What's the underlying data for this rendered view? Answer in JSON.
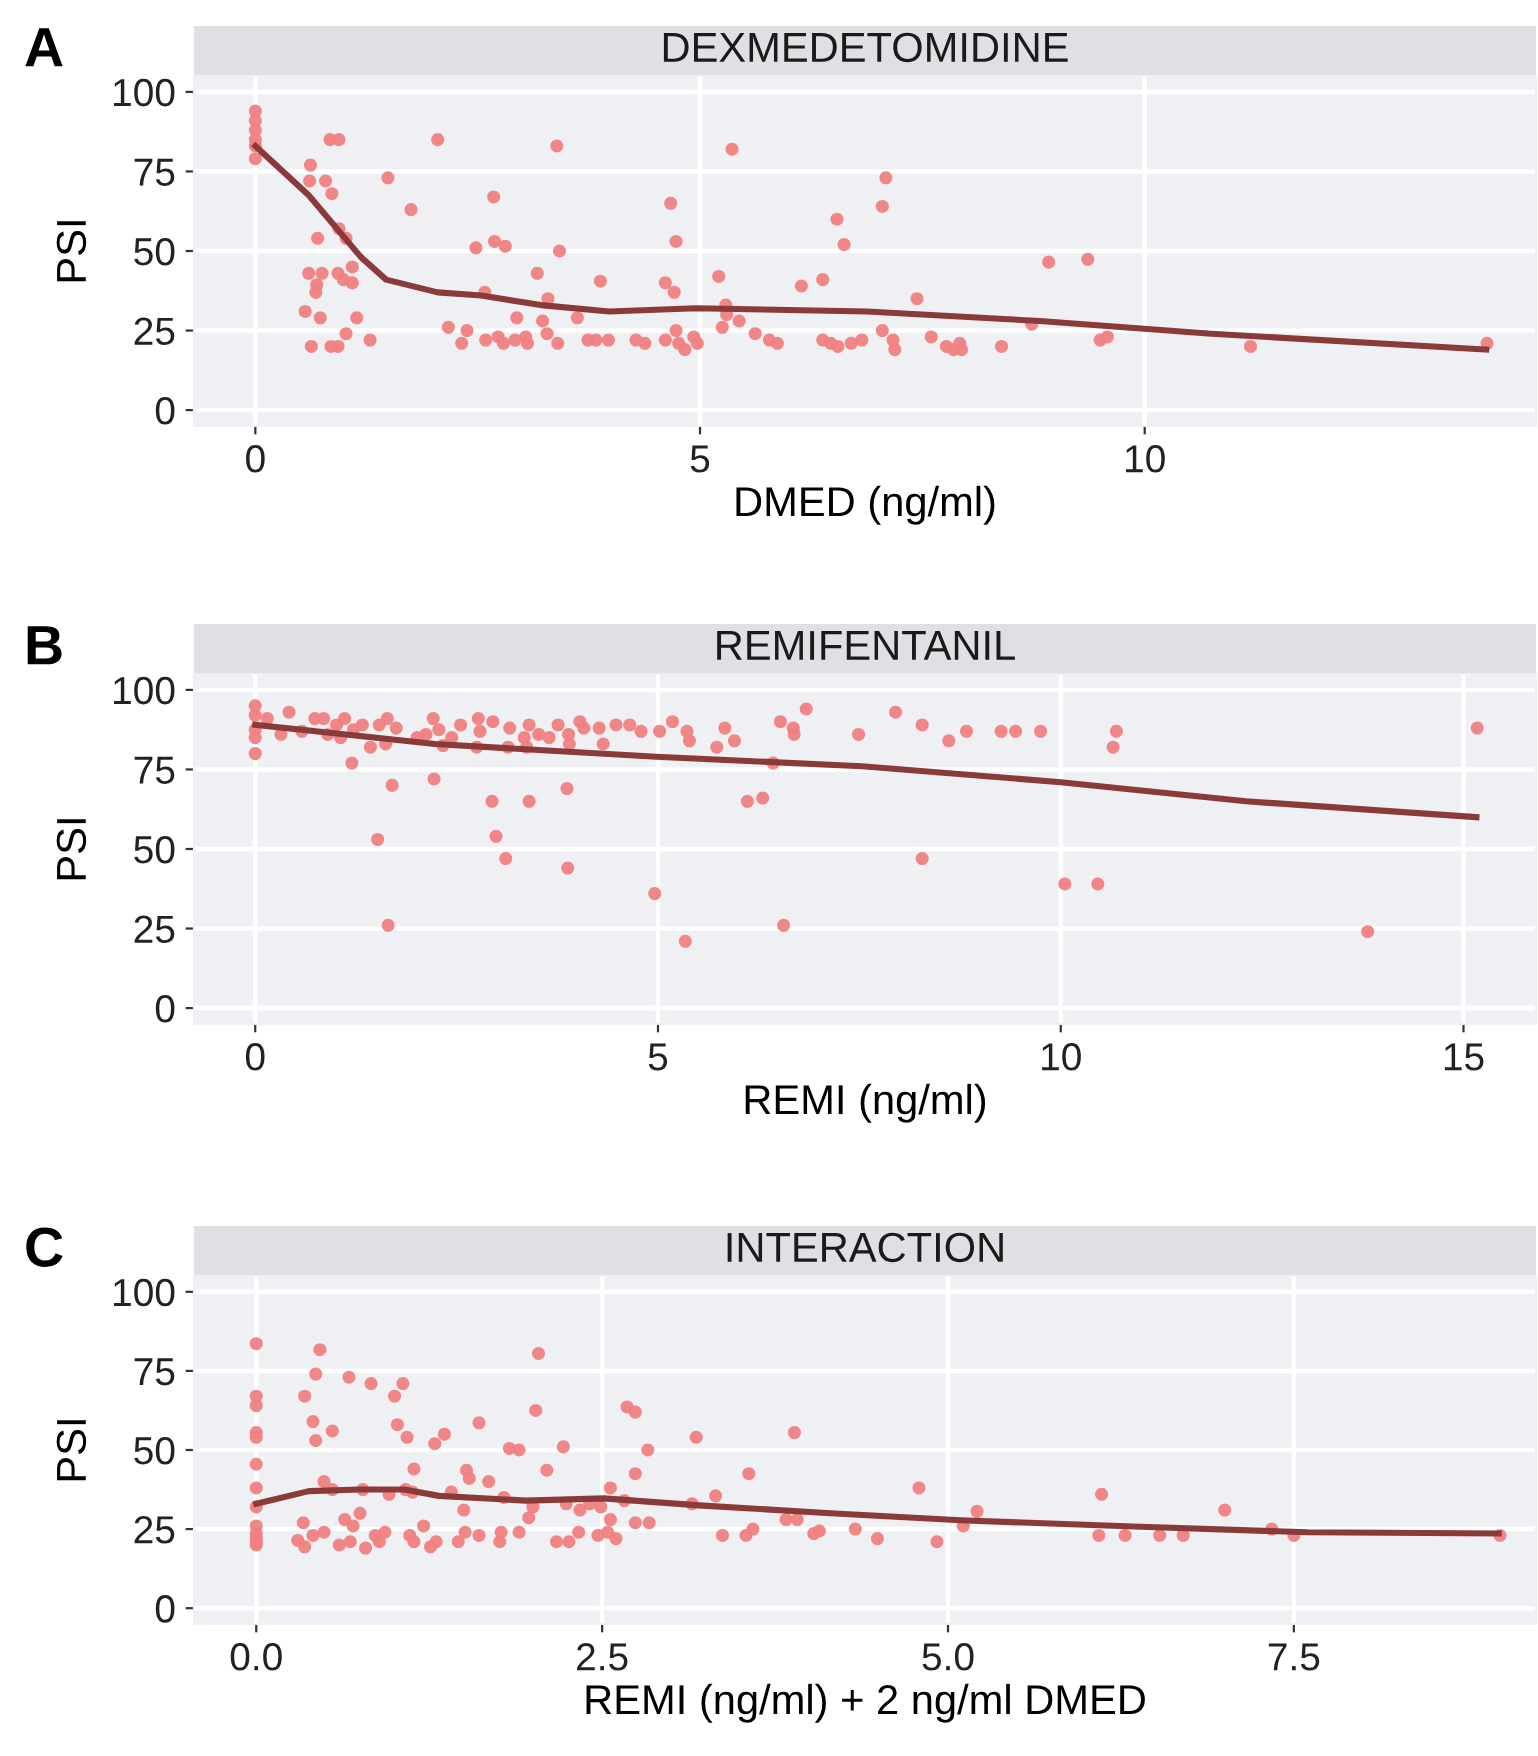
{
  "chart_data": [
    {
      "type": "scatter",
      "title": "DEXMEDETOMIDINE",
      "xlabel": "DMED (ng/ml)",
      "ylabel": "PSI",
      "annotations": [
        "A"
      ],
      "grid": true,
      "xlim": [
        -0.69,
        14.4
      ],
      "ylim": [
        -5,
        105
      ],
      "xticks": [
        0,
        5,
        10
      ],
      "yticks": [
        0,
        25,
        50,
        75,
        100
      ],
      "series": [
        {
          "marker": "circle",
          "color": "#f08080",
          "x": [
            0,
            0,
            0,
            0,
            0,
            0,
            0.62,
            0.84,
            0.94,
            0.61,
            0.79,
            0.86,
            1.49,
            1.75,
            2.05,
            3.39,
            5.36,
            0.7,
            1.02,
            0.94,
            2.68,
            4.67,
            4.73,
            2.69,
            2.81,
            2.48,
            3.42,
            7.09,
            7.05,
            6.54,
            6.62,
            8.92,
            9.36,
            3.17,
            3.88,
            4.61,
            4.71,
            5.21,
            6.14,
            6.38,
            0.6,
            0.75,
            0.93,
            1.09,
            0.99,
            1.09,
            0.69,
            0.68,
            2.58,
            3.29,
            7.44,
            0.56,
            0.73,
            1.14,
            2.94,
            3.62,
            5.29,
            5.3,
            5.44,
            2.17,
            2.38,
            3.23,
            3.28,
            1.02,
            1.29,
            0.63,
            0.85,
            0.93,
            2.32,
            2.59,
            2.73,
            2.79,
            2.92,
            3.04,
            3.06,
            3.4,
            3.74,
            3.83,
            3.97,
            4.28,
            4.38,
            4.61,
            4.73,
            4.76,
            4.83,
            4.93,
            4.97,
            5.25,
            5.62,
            5.78,
            5.87,
            6.38,
            6.47,
            6.55,
            6.7,
            6.82,
            7.05,
            7.17,
            7.19,
            7.6,
            7.77,
            7.85,
            7.92,
            7.94,
            8.39,
            8.73,
            9.5,
            9.58,
            11.19,
            13.85
          ],
          "values": [
            94,
            91,
            88,
            85,
            83,
            79,
            77,
            85,
            85,
            72,
            72,
            68,
            73,
            63,
            85,
            83,
            82,
            54,
            54,
            57,
            67,
            65,
            53,
            53,
            51.5,
            51,
            50,
            73,
            64,
            60,
            52,
            46.5,
            47.4,
            43,
            40.5,
            40,
            37,
            42,
            39,
            41,
            43,
            43,
            43,
            45,
            41,
            40,
            39.4,
            37,
            37,
            35,
            35,
            31,
            29,
            29,
            29,
            29,
            33,
            30,
            28,
            26,
            25,
            28,
            24,
            24,
            22,
            20,
            20,
            20,
            21,
            22,
            23,
            21,
            22,
            23,
            21,
            21,
            22,
            22,
            22,
            22,
            21,
            22,
            25,
            21,
            19,
            23,
            21,
            26,
            24,
            22,
            21,
            22,
            21,
            20,
            21,
            22,
            25,
            22,
            19,
            23,
            20,
            19,
            21,
            19,
            20,
            27,
            22,
            23,
            20,
            21
          ]
        },
        {
          "type": "line",
          "color": "#8b3a3a",
          "x": [
            0,
            0.6,
            1.19,
            1.47,
            2.05,
            2.54,
            3.21,
            3.98,
            4.95,
            6.88,
            8.82,
            10.75,
            13.84
          ],
          "values": [
            83,
            67.5,
            48,
            41,
            37,
            36,
            33,
            31,
            32,
            31,
            28,
            24,
            19
          ]
        }
      ]
    },
    {
      "type": "scatter",
      "title": "REMIFENTANIL",
      "xlabel": "REMI (ng/ml)",
      "ylabel": "PSI",
      "annotations": [
        "B"
      ],
      "grid": true,
      "xlim": [
        -0.76,
        15.9
      ],
      "ylim": [
        -5,
        105
      ],
      "xticks": [
        0,
        5,
        10,
        15
      ],
      "yticks": [
        0,
        25,
        50,
        75,
        100
      ],
      "series": [
        {
          "marker": "circle",
          "color": "#f08080",
          "x": [
            0,
            0,
            0,
            0,
            0,
            0.42,
            0.15,
            0.32,
            0.58,
            0.74,
            0.85,
            0.9,
            1.01,
            1.06,
            1.11,
            1.22,
            1.33,
            1.43,
            1.54,
            1.64,
            1.62,
            1.75,
            1.2,
            1.7,
            1.52,
            1.65,
            2.01,
            2.21,
            2.12,
            2.28,
            2.33,
            2.44,
            2.55,
            2.75,
            2.77,
            2.79,
            2.95,
            3.16,
            3.14,
            3.34,
            3.37,
            3.4,
            3.52,
            3.65,
            3.76,
            3.89,
            3.9,
            4.03,
            4.08,
            4.27,
            4.32,
            4.48,
            4.65,
            4.79,
            5.02,
            5.18,
            5.36,
            5.39,
            5.73,
            5.83,
            5.95,
            6.43,
            6.52,
            6.68,
            6.69,
            6.84,
            7.49,
            7.95,
            8.28,
            8.61,
            8.83,
            9.26,
            9.44,
            9.75,
            10.65,
            10.69,
            15.17,
            2.22,
            2.94,
            3.4,
            3.87,
            2.99,
            3.11,
            3.88,
            6.11,
            6.3,
            4.96,
            5.34,
            6.56,
            8.28,
            10.05,
            10.46,
            13.81
          ],
          "values": [
            95,
            92,
            87.5,
            85,
            80,
            93,
            91,
            86,
            87,
            91,
            91,
            86,
            89,
            85,
            91,
            87.5,
            89,
            82,
            89,
            91,
            83,
            88,
            77,
            70,
            53,
            26,
            85,
            91,
            86,
            87.5,
            82.5,
            85,
            89,
            82,
            91,
            87,
            90,
            88,
            82,
            85,
            82,
            89,
            86,
            85,
            89,
            86,
            83,
            90,
            88,
            88,
            83,
            89,
            89,
            87,
            87,
            90,
            87,
            84,
            82,
            88,
            84,
            77,
            90,
            88,
            86,
            94,
            86,
            93,
            89,
            84,
            87,
            87,
            87,
            87,
            82,
            87,
            88,
            72,
            65,
            65,
            69,
            54,
            47,
            44,
            65,
            66,
            36,
            21,
            26,
            47,
            39,
            39,
            24
          ]
        },
        {
          "type": "line",
          "color": "#8b3a3a",
          "x": [
            0,
            2.23,
            4.98,
            7.53,
            10,
            12.3,
            15.16
          ],
          "values": [
            89,
            83,
            79,
            76,
            71,
            65,
            60
          ]
        }
      ]
    },
    {
      "type": "scatter",
      "title": "INTERACTION",
      "xlabel": "REMI (ng/ml) + 2 ng/ml DMED",
      "ylabel": "PSI",
      "annotations": [
        "C"
      ],
      "grid": true,
      "xlim": [
        -0.45,
        9.25
      ],
      "ylim": [
        -5,
        105
      ],
      "xticks": [
        {
          "value": 0,
          "label": "0.0"
        },
        {
          "value": 2.5,
          "label": "2.5"
        },
        {
          "value": 5,
          "label": "5.0"
        },
        {
          "value": 7.5,
          "label": "7.5"
        }
      ],
      "yticks": [
        0,
        25,
        50,
        75,
        100
      ],
      "series": [
        {
          "marker": "circle",
          "color": "#f08080",
          "x": [
            0,
            0,
            0,
            0,
            0,
            0,
            0,
            0,
            0,
            0,
            0,
            0,
            0,
            0.46,
            0.43,
            0.35,
            0.41,
            0.43,
            0.55,
            0.67,
            0.83,
            1.06,
            1.0,
            1.02,
            1.09,
            2.04,
            2.02,
            2.68,
            2.74,
            2.22,
            1.83,
            1.9,
            1.29,
            1.36,
            1.61,
            2.83,
            3.18,
            3.89,
            1.14,
            1.52,
            1.54,
            1.68,
            2.1,
            2.74,
            3.56,
            4.79,
            6.11,
            0.49,
            0.55,
            0.77,
            0.96,
            1.08,
            1.13,
            1.41,
            1.5,
            1.79,
            2.0,
            1.97,
            2.24,
            2.34,
            2.41,
            2.49,
            2.56,
            2.56,
            2.66,
            2.74,
            2.84,
            3.15,
            3.32,
            3.83,
            3.91,
            4.07,
            4.33,
            4.49,
            4.92,
            5.11,
            5.21,
            6.09,
            6.28,
            6.53,
            6.7,
            7.0,
            7.34,
            7.5,
            8.99,
            0.34,
            0.3,
            0.35,
            0.41,
            0.49,
            0.6,
            0.64,
            0.68,
            0.7,
            0.75,
            0.79,
            0.86,
            0.89,
            0.93,
            1.11,
            1.14,
            1.21,
            1.26,
            1.3,
            1.46,
            1.51,
            1.61,
            1.76,
            1.77,
            1.9,
            2.17,
            2.26,
            2.33,
            2.47,
            2.54,
            2.6,
            3.37,
            3.54,
            3.59,
            4.03
          ],
          "values": [
            83.6,
            67,
            64,
            55.5,
            54,
            45.5,
            38,
            32,
            26,
            23.6,
            22,
            20,
            21,
            81.7,
            74,
            67,
            59,
            53,
            56,
            73,
            71,
            71,
            67,
            58,
            54,
            80.5,
            62.5,
            63.6,
            62,
            51,
            50.5,
            50,
            52,
            55,
            58.6,
            50,
            54,
            55.5,
            44,
            43.6,
            41,
            40,
            43.6,
            42.5,
            42.5,
            38,
            36,
            40,
            37.5,
            37.5,
            36,
            37.5,
            36.7,
            36.7,
            31,
            35,
            32,
            28.6,
            33,
            31,
            33,
            32,
            38,
            28,
            34,
            27,
            27,
            33,
            35.5,
            28,
            28,
            24.4,
            25,
            22,
            21,
            26,
            30.6,
            23,
            23,
            23,
            23,
            31,
            25,
            23,
            23,
            27,
            21.4,
            19.4,
            23,
            24,
            20,
            28,
            21,
            26,
            30,
            19,
            23,
            21,
            24,
            23,
            21,
            26,
            19.4,
            21,
            21,
            24,
            23,
            21,
            24,
            24,
            21,
            21,
            24,
            23,
            24,
            22,
            23,
            23,
            25,
            23.6
          ]
        },
        {
          "type": "line",
          "color": "#8b3a3a",
          "x": [
            0,
            0.38,
            0.75,
            1.07,
            1.32,
            1.95,
            2.51,
            3.2,
            4.15,
            5.09,
            6.34,
            7.6,
            8.98
          ],
          "values": [
            33,
            37,
            37.5,
            37.5,
            35.5,
            34,
            34.7,
            32.5,
            30,
            27.8,
            25.8,
            24,
            23.6
          ]
        }
      ]
    }
  ]
}
